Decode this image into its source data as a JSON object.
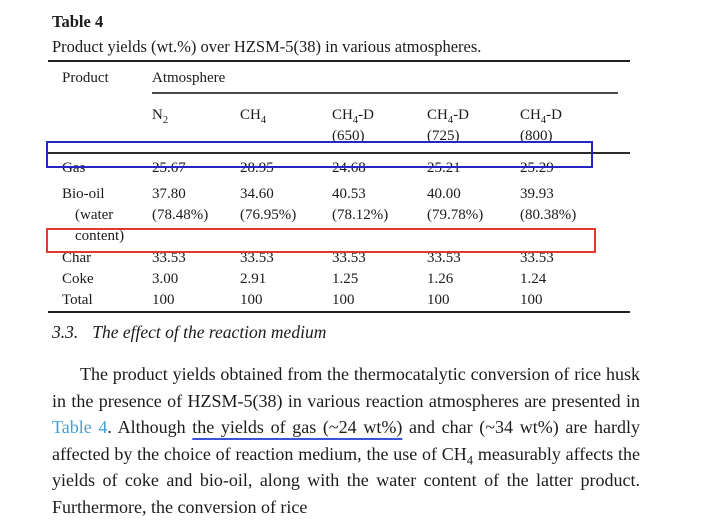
{
  "colors": {
    "link_blue": "#3fa0d8",
    "underline_blue": "#3d52d5",
    "gas_box_blue": "#2626c4",
    "char_box_red": "#dd3a30"
  },
  "table": {
    "title": "Table 4",
    "caption": "Product yields (wt.%) over HZSM-5(38) in various atmospheres.",
    "product_header": "Product",
    "group_header": "Atmosphere",
    "columns": [
      [
        "N_{2}"
      ],
      [
        "CH_{4}"
      ],
      [
        "CH_{4}-D",
        "(650)"
      ],
      [
        "CH_{4}-D",
        "(725)"
      ],
      [
        "CH_{4}-D",
        "(800)"
      ]
    ],
    "rows": [
      {
        "product": [
          "Gas"
        ],
        "cells": [
          [
            "25.67"
          ],
          [
            "28.95"
          ],
          [
            "24.68"
          ],
          [
            "25.21"
          ],
          [
            "25.29"
          ]
        ],
        "highlight": "blue"
      },
      {
        "product": [
          "Bio-oil",
          "(water",
          "content)"
        ],
        "cells": [
          [
            "37.80",
            "(78.48%)"
          ],
          [
            "34.60",
            "(76.95%)"
          ],
          [
            "40.53",
            "(78.12%)"
          ],
          [
            "40.00",
            "(79.78%)"
          ],
          [
            "39.93",
            "(80.38%)"
          ]
        ],
        "highlight": null
      },
      {
        "product": [
          "Char"
        ],
        "cells": [
          [
            "33.53"
          ],
          [
            "33.53"
          ],
          [
            "33.53"
          ],
          [
            "33.53"
          ],
          [
            "33.53"
          ]
        ],
        "highlight": "red"
      },
      {
        "product": [
          "Coke"
        ],
        "cells": [
          [
            "3.00"
          ],
          [
            "2.91"
          ],
          [
            "1.25"
          ],
          [
            "1.26"
          ],
          [
            "1.24"
          ]
        ],
        "highlight": null
      },
      {
        "product": [
          "Total"
        ],
        "cells": [
          [
            "100"
          ],
          [
            "100"
          ],
          [
            "100"
          ],
          [
            "100"
          ],
          [
            "100"
          ]
        ],
        "highlight": null
      }
    ]
  },
  "section": {
    "number": "3.3.",
    "title": "The effect of the reaction medium"
  },
  "paragraph": {
    "segments": [
      {
        "text": "The product yields obtained from the thermocatalytic conversion of rice husk in the presence of HZSM-5(38) in various reaction atmospheres are presented in ",
        "style": null
      },
      {
        "text": "Table 4",
        "style": "link"
      },
      {
        "text": ". Although ",
        "style": null
      },
      {
        "text": "the yields of gas (~24 wt%)",
        "style": "underline"
      },
      {
        "text": " and char (~34 wt%) are hardly affected by the choice of reaction medium, the use of CH_{4} measurably affects the yields of coke and bio-oil, along with the water content of the latter product. Furthermore, the conversion of rice",
        "style": null
      }
    ]
  }
}
